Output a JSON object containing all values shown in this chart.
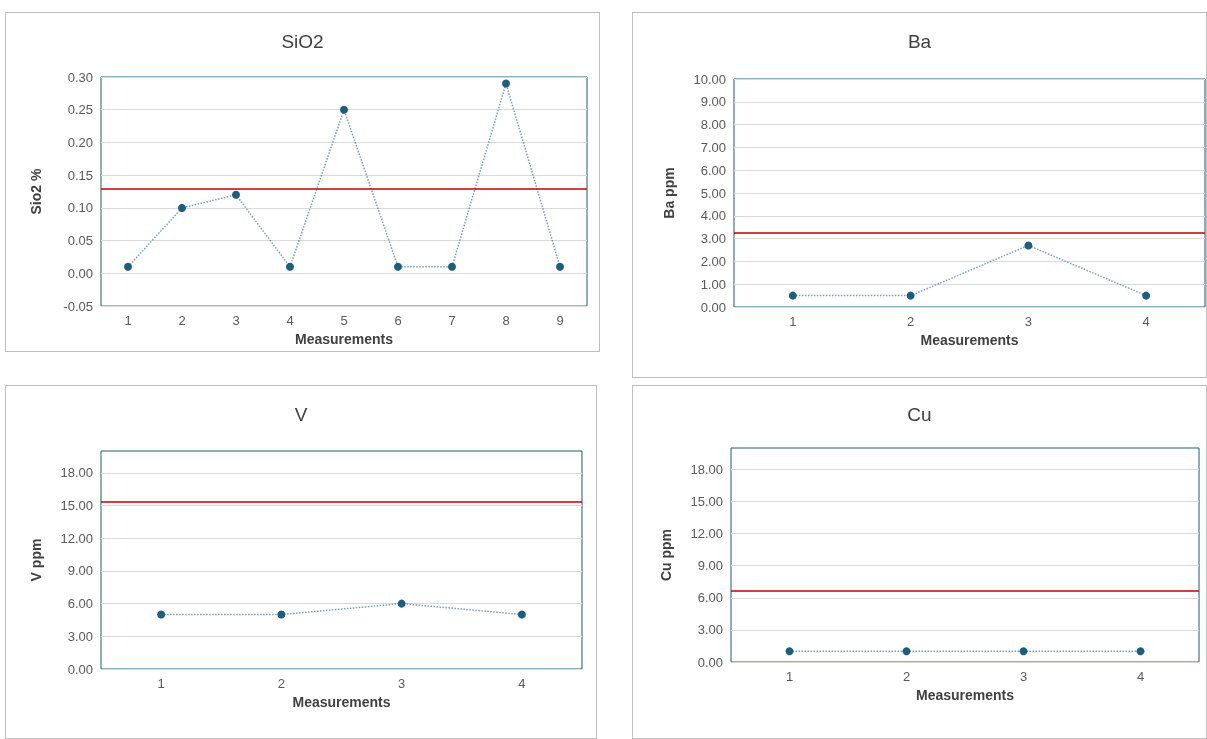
{
  "chart_data": [
    {
      "type": "line",
      "title": "SiO2",
      "xlabel": "Measurements",
      "ylabel": "Sio2 %",
      "categories": [
        "1",
        "2",
        "3",
        "4",
        "5",
        "6",
        "7",
        "8",
        "9"
      ],
      "series": [
        {
          "color": "#1b5e7e",
          "values": [
            0.01,
            0.1,
            0.12,
            0.01,
            0.25,
            0.01,
            0.01,
            0.29,
            0.01
          ]
        }
      ],
      "ylim": [
        -0.05,
        0.3
      ],
      "yticks": [
        {
          "value": -0.05,
          "label": "-0.05"
        },
        {
          "value": 0,
          "label": "0.00"
        },
        {
          "value": 0.05,
          "label": "0.05"
        },
        {
          "value": 0.1,
          "label": "0.10"
        },
        {
          "value": 0.15,
          "label": "0.15"
        },
        {
          "value": 0.2,
          "label": "0.20"
        },
        {
          "value": 0.25,
          "label": "0.25"
        },
        {
          "value": 0.3,
          "label": "0.30"
        }
      ],
      "ref_lines": [
        {
          "axis": "y",
          "value": 0.13,
          "color": "#c00000"
        }
      ],
      "grid": "y",
      "marker": "circle",
      "line_style": "dotted"
    },
    {
      "type": "line",
      "title": "Ba",
      "xlabel": "Measurements",
      "ylabel": "Ba ppm",
      "categories": [
        "1",
        "2",
        "3",
        "4"
      ],
      "series": [
        {
          "color": "#1b5e7e",
          "values": [
            0.5,
            0.5,
            2.7,
            0.5
          ]
        }
      ],
      "ylim": [
        0,
        10
      ],
      "yticks": [
        {
          "value": 0,
          "label": "0.00"
        },
        {
          "value": 1,
          "label": "1.00"
        },
        {
          "value": 2,
          "label": "2.00"
        },
        {
          "value": 3,
          "label": "3.00"
        },
        {
          "value": 4,
          "label": "4.00"
        },
        {
          "value": 5,
          "label": "5.00"
        },
        {
          "value": 6,
          "label": "6.00"
        },
        {
          "value": 7,
          "label": "7.00"
        },
        {
          "value": 8,
          "label": "8.00"
        },
        {
          "value": 9,
          "label": "9.00"
        },
        {
          "value": 10,
          "label": "10.00"
        }
      ],
      "ref_lines": [
        {
          "axis": "y",
          "value": 3.25,
          "color": "#c00000"
        }
      ],
      "grid": "y",
      "marker": "circle",
      "line_style": "dotted"
    },
    {
      "type": "line",
      "title": "V",
      "xlabel": "Measurements",
      "ylabel": "V ppm",
      "categories": [
        "1",
        "2",
        "3",
        "4"
      ],
      "series": [
        {
          "color": "#1b5e7e",
          "values": [
            5,
            5,
            6,
            5
          ]
        }
      ],
      "ylim": [
        0,
        20
      ],
      "yticks": [
        {
          "value": 0,
          "label": "0.00"
        },
        {
          "value": 3,
          "label": "3.00"
        },
        {
          "value": 6,
          "label": "6.00"
        },
        {
          "value": 9,
          "label": "9.00"
        },
        {
          "value": 12,
          "label": "12.00"
        },
        {
          "value": 15,
          "label": "15.00"
        },
        {
          "value": 18,
          "label": "18.00"
        }
      ],
      "ref_lines": [
        {
          "axis": "y",
          "value": 15.3,
          "color": "#c00000"
        }
      ],
      "grid": "y",
      "marker": "circle",
      "line_style": "dotted"
    },
    {
      "type": "line",
      "title": "Cu",
      "xlabel": "Measurements",
      "ylabel": "Cu ppm",
      "categories": [
        "1",
        "2",
        "3",
        "4"
      ],
      "series": [
        {
          "color": "#1b5e7e",
          "values": [
            1,
            1,
            1,
            1
          ]
        }
      ],
      "ylim": [
        0,
        20
      ],
      "yticks": [
        {
          "value": 0,
          "label": "0.00"
        },
        {
          "value": 3,
          "label": "3.00"
        },
        {
          "value": 6,
          "label": "6.00"
        },
        {
          "value": 9,
          "label": "9.00"
        },
        {
          "value": 12,
          "label": "12.00"
        },
        {
          "value": 15,
          "label": "15.00"
        },
        {
          "value": 18,
          "label": "18.00"
        }
      ],
      "ref_lines": [
        {
          "axis": "y",
          "value": 6.7,
          "color": "#c00000"
        }
      ],
      "grid": "y",
      "marker": "circle",
      "line_style": "dotted"
    }
  ]
}
